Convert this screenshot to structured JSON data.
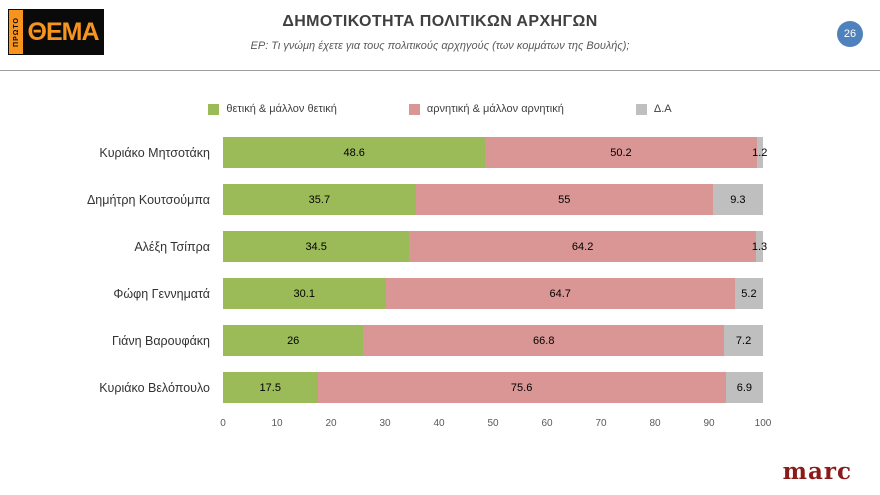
{
  "header": {
    "logo_vertical": "ΠΡΩΤΟ",
    "logo_text": "ΘΕΜΑ",
    "title": "ΔΗΜΟΤΙΚΟΤΗΤΑ ΠΟΛΙΤΙΚΩΝ ΑΡΧΗΓΩΝ",
    "subtitle": "ΕΡ: Τι γνώμη έχετε για τους πολιτικούς αρχηγούς (των κομμάτων της Βουλής);",
    "page_number": "26",
    "badge_color": "#4f81bd"
  },
  "chart_data": {
    "type": "bar",
    "orientation": "horizontal",
    "stacked": true,
    "title": "ΔΗΜΟΤΙΚΟΤΗΤΑ ΠΟΛΙΤΙΚΩΝ ΑΡΧΗΓΩΝ",
    "categories": [
      "Κυριάκο Μητσοτάκη",
      "Δημήτρη Κουτσούμπα",
      "Αλέξη Τσίπρα",
      "Φώφη Γεννηματά",
      "Γιάνη Βαρουφάκη",
      "Κυριάκο Βελόπουλο"
    ],
    "series": [
      {
        "name": "θετική & μάλλον θετική",
        "color": "#9bbb59",
        "values": [
          48.6,
          35.7,
          34.5,
          30.1,
          26,
          17.5
        ]
      },
      {
        "name": "αρνητική & μάλλον αρνητική",
        "color": "#d99694",
        "values": [
          50.2,
          55,
          64.2,
          64.7,
          66.8,
          75.6
        ]
      },
      {
        "name": "Δ.Α",
        "color": "#bfbfbf",
        "values": [
          1.2,
          9.3,
          1.3,
          5.2,
          7.2,
          6.9
        ]
      }
    ],
    "x_ticks": [
      0,
      10,
      20,
      30,
      40,
      50,
      60,
      70,
      80,
      90,
      100
    ],
    "xlim": [
      0,
      100
    ],
    "legend_position": "top",
    "grid": false
  },
  "footer": {
    "brand": "marc"
  }
}
